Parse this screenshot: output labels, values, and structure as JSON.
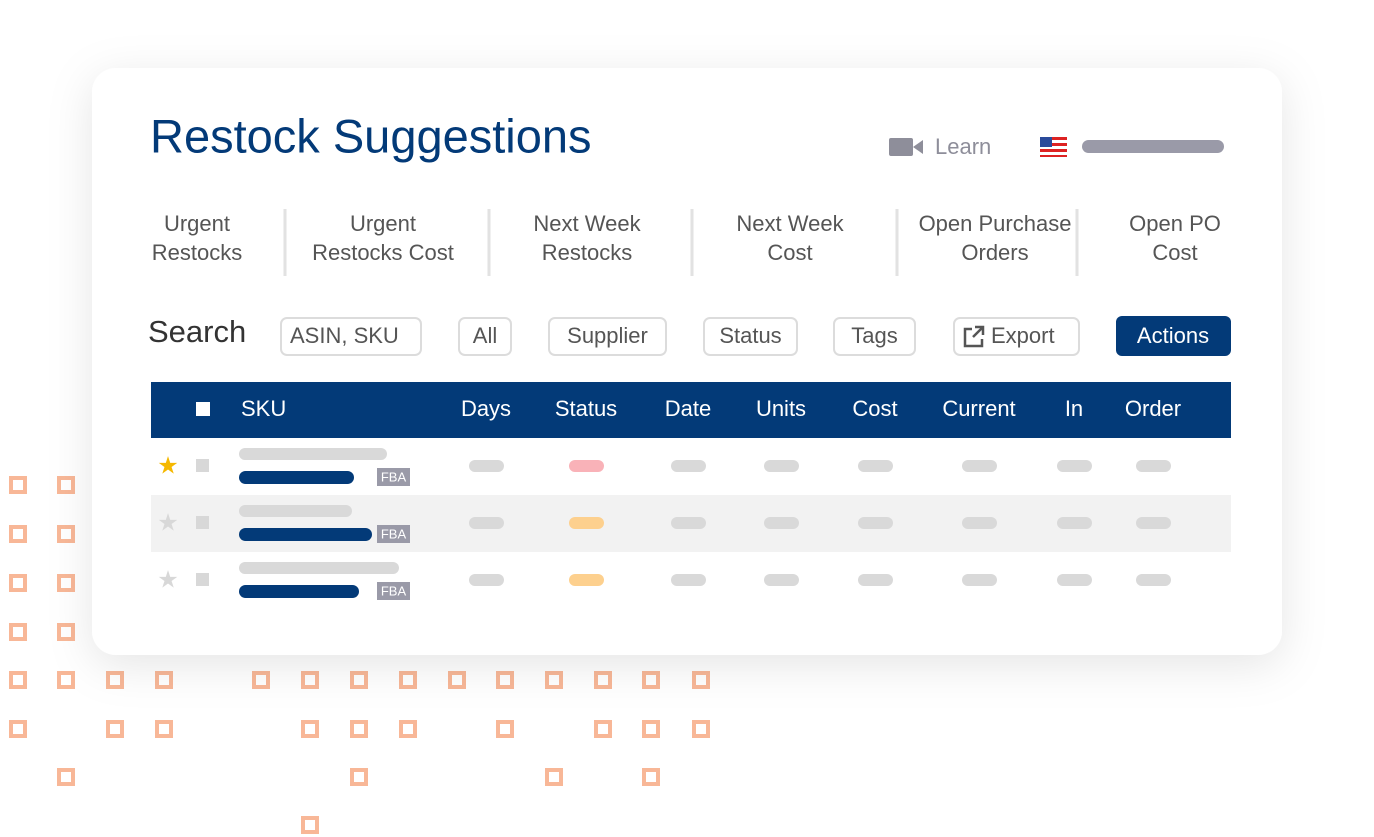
{
  "header": {
    "title": "Restock Suggestions",
    "learn": "Learn"
  },
  "stats": [
    [
      "Urgent",
      "Restocks"
    ],
    [
      "Urgent",
      "Restocks Cost"
    ],
    [
      "Next Week",
      "Restocks"
    ],
    [
      "Next Week",
      "Cost"
    ],
    [
      "Open Purchase",
      "Orders"
    ],
    [
      "Open PO",
      "Cost"
    ]
  ],
  "toolbar": {
    "search_label": "Search",
    "search_placeholder": "ASIN, SKU",
    "buttons": [
      "All",
      "Supplier",
      "Status",
      "Tags"
    ],
    "export": "Export",
    "actions": "Actions"
  },
  "table": {
    "columns": [
      "SKU",
      "Days",
      "Status",
      "Date",
      "Units",
      "Cost",
      "Current",
      "In",
      "Order"
    ],
    "rows": [
      {
        "starred": true,
        "badge": "FBA",
        "status_color": "#f9b2b8"
      },
      {
        "starred": false,
        "badge": "FBA",
        "status_color": "#fdd08e"
      },
      {
        "starred": false,
        "badge": "FBA",
        "status_color": "#fdd08e"
      }
    ]
  }
}
